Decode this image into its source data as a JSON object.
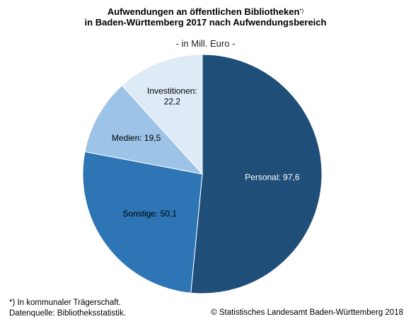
{
  "chart_data": {
    "type": "pie",
    "title_line1": "Aufwendungen an öffentlichen Bibliotheken",
    "title_marker": "*)",
    "title_line2": "in Baden-Württemberg 2017 nach Aufwendungsbereich",
    "subtitle": "- in Mill. Euro -",
    "slices": [
      {
        "label": "Personal",
        "value": 97.6,
        "display": "97,6",
        "color": "#1f4e79",
        "text_color": "#ffffff"
      },
      {
        "label": "Sonstige",
        "value": 50.1,
        "display": "50,1",
        "color": "#2e75b6",
        "text_color": "#000000"
      },
      {
        "label": "Medien",
        "value": 19.5,
        "display": "19,5",
        "color": "#9dc3e6",
        "text_color": "#000000"
      },
      {
        "label": "Investitionen",
        "value": 22.2,
        "display": "22,2",
        "color": "#deebf7",
        "text_color": "#000000"
      }
    ],
    "start": "12 o'clock",
    "direction": "clockwise"
  },
  "footnote_line1": "*) In kommunaler Trägerschaft.",
  "footnote_line2": "Datenquelle: Bibliotheksstatistik.",
  "source": "© Statistisches Landesamt Baden-Württemberg 2018"
}
